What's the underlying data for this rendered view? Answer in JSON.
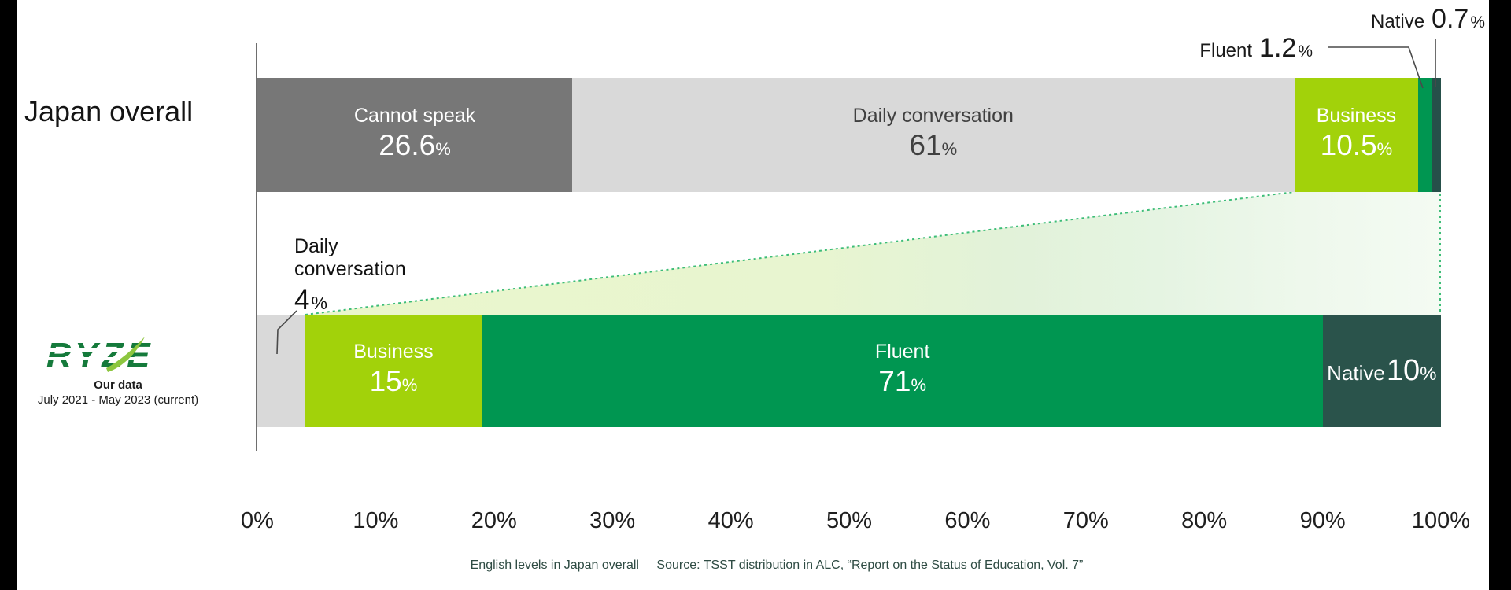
{
  "title_left": "Japan overall",
  "brand": {
    "logo_text": "RYZE",
    "line1": "Our data",
    "line2": "July 2021 - May 2023 (current)"
  },
  "chart_data": {
    "type": "bar",
    "subtype": "horizontal-stacked-comparison",
    "unit": "%",
    "xlim": [
      0,
      100
    ],
    "x_ticks": [
      "0%",
      "10%",
      "20%",
      "30%",
      "40%",
      "50%",
      "60%",
      "70%",
      "80%",
      "90%",
      "100%"
    ],
    "grid": false,
    "legend": "none",
    "rows": [
      {
        "id": "japan",
        "label": "Japan overall",
        "segments": [
          {
            "name": "Cannot speak",
            "value": 26.6,
            "display": "26.6",
            "color": "#777777",
            "text": "#ffffff",
            "label": "stacked"
          },
          {
            "name": "Daily conversation",
            "value": 61,
            "display": "61",
            "color": "#d9d9d9",
            "text": "#404040",
            "label": "stacked"
          },
          {
            "name": "Business",
            "value": 10.5,
            "display": "10.5",
            "color": "#a2d20a",
            "text": "#ffffff",
            "label": "stacked"
          },
          {
            "name": "Fluent",
            "value": 1.2,
            "display": "1.2",
            "color": "#009651",
            "text": "#ffffff",
            "label": "none"
          },
          {
            "name": "Native",
            "value": 0.7,
            "display": "0.7",
            "color": "#26504a",
            "text": "#ffffff",
            "label": "none"
          }
        ]
      },
      {
        "id": "ours",
        "label": "Our data",
        "sublabel": "July 2021 - May 2023 (current)",
        "segments": [
          {
            "name": "Daily conversation",
            "value": 4,
            "display": "4",
            "color": "#d9d9d9",
            "text": "#404040",
            "label": "none"
          },
          {
            "name": "Business",
            "value": 15,
            "display": "15",
            "color": "#a2d20a",
            "text": "#ffffff",
            "label": "stacked"
          },
          {
            "name": "Fluent",
            "value": 71,
            "display": "71",
            "color": "#009651",
            "text": "#ffffff",
            "label": "stacked"
          },
          {
            "name": "Native",
            "value": 10,
            "display": "10",
            "color": "#2a534b",
            "text": "#ffffff",
            "label": "single"
          }
        ]
      }
    ],
    "callouts": {
      "fluent": {
        "name": "Fluent",
        "value": "1.2",
        "pct": "%"
      },
      "native": {
        "name": "Native",
        "value": "0.7",
        "pct": "%"
      },
      "daily": {
        "name_line1": "Daily",
        "name_line2": "conversation",
        "value": "4",
        "pct": "%"
      }
    }
  },
  "caption": {
    "part1": "English levels in Japan overall",
    "part2": "Source: TSST distribution in ALC, “Report on the Status of Education, Vol. 7”"
  },
  "colors": {
    "cannot_speak": "#777777",
    "daily_conversation": "#d9d9d9",
    "business": "#a2d20a",
    "fluent": "#009651",
    "native": "#2a534b",
    "connector_dotted": "#3dbd78",
    "connector_fill_left": "#eaf6cc",
    "connector_fill_right": "#f4fbf3",
    "caption_text": "#2e4b43",
    "brand_green": "#157a3b",
    "brand_leaf": "#8dc63f"
  }
}
